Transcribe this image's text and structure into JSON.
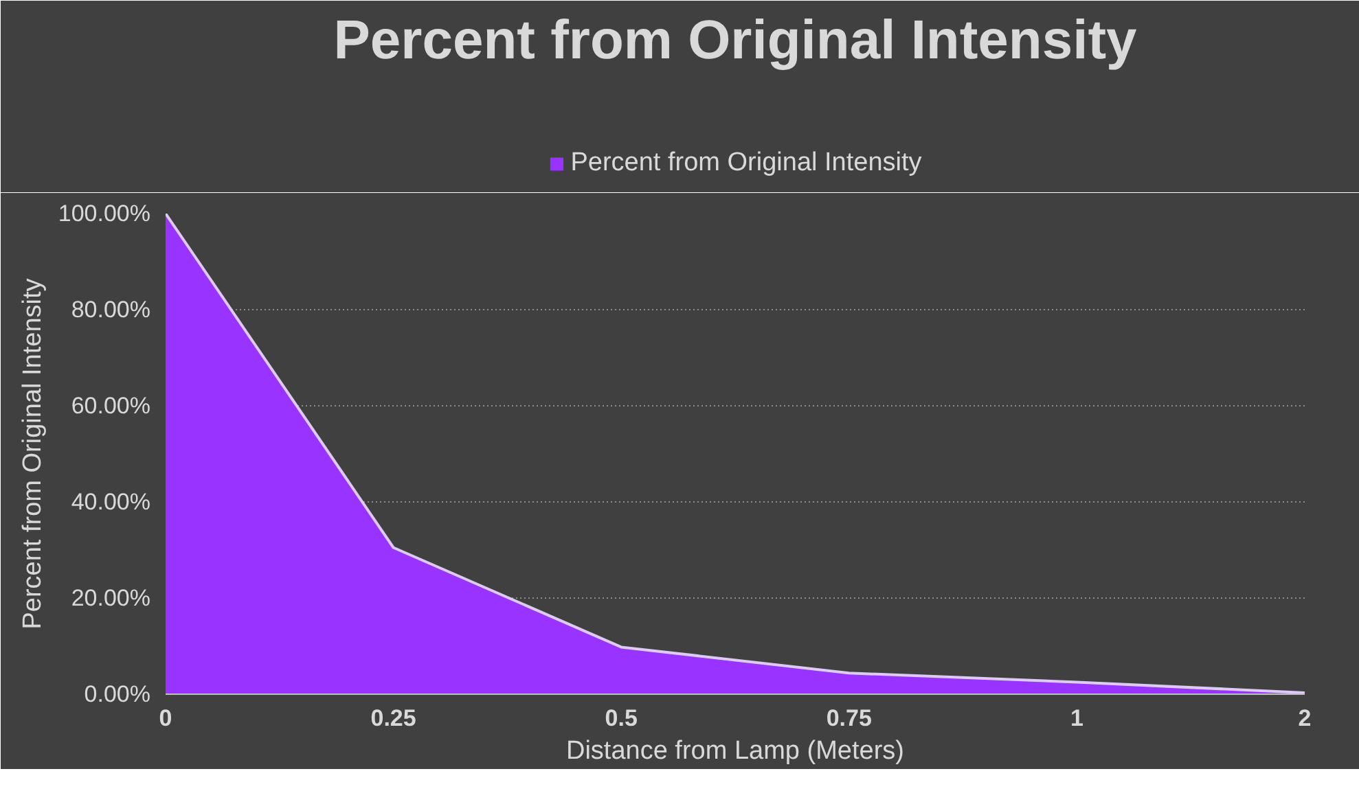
{
  "chart_data": {
    "type": "area",
    "title": "Percent from Original Intensity",
    "xlabel": "Distance from Lamp (Meters)",
    "ylabel": "Percent from Original Intensity",
    "categories": [
      "0",
      "0.25",
      "0.5",
      "0.75",
      "1",
      "2"
    ],
    "series": [
      {
        "name": "Percent from Original Intensity",
        "color": "#9933ff",
        "values": [
          100,
          30.5,
          9.8,
          4.4,
          2.5,
          0.3
        ]
      }
    ],
    "ylim": [
      0,
      100
    ],
    "yticks": [
      {
        "value": 0,
        "label": "0.00%"
      },
      {
        "value": 20,
        "label": "20.00%"
      },
      {
        "value": 40,
        "label": "40.00%"
      },
      {
        "value": 60,
        "label": "60.00%"
      },
      {
        "value": 80,
        "label": "80.00%"
      },
      {
        "value": 100,
        "label": "100.00%"
      }
    ],
    "grid": "y",
    "legend": "top"
  }
}
